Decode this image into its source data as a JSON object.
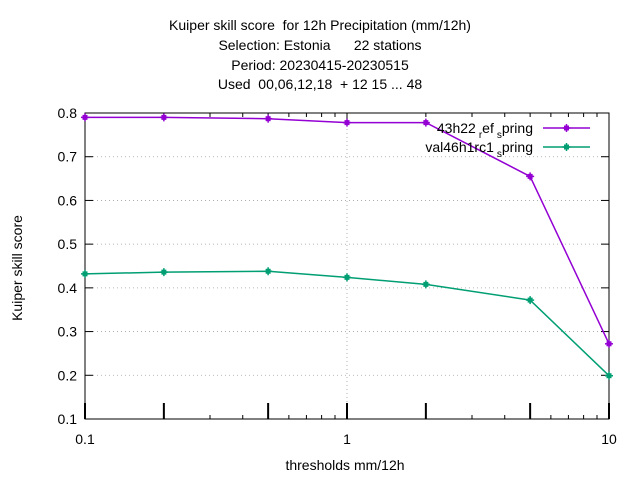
{
  "title_lines": [
    "Kuiper skill score  for 12h Precipitation (mm/12h)",
    "Selection: Estonia      22 stations",
    "Period: 20230415-20230515",
    "Used  00,06,12,18  + 12 15 ... 48"
  ],
  "chart_data": {
    "type": "line",
    "xlabel": "thresholds mm/12h",
    "ylabel": "Kuiper skill score",
    "xscale": "log",
    "xlim": [
      0.1,
      10
    ],
    "ylim": [
      0.1,
      0.8
    ],
    "x_ticks": [
      0.1,
      1,
      10
    ],
    "x_tick_labels": [
      "0.1",
      "1",
      "10"
    ],
    "y_ticks": [
      0.1,
      0.2,
      0.3,
      0.4,
      0.5,
      0.6,
      0.7,
      0.8
    ],
    "y_tick_labels": [
      "0.1",
      "0.2",
      "0.3",
      "0.4",
      "0.5",
      "0.6",
      "0.7",
      "0.8"
    ],
    "grid": true,
    "legend_position": "top-right",
    "threshold_marks": [
      0.1,
      0.2,
      0.5,
      1,
      2,
      5,
      10
    ],
    "series": [
      {
        "name": "43h22_ref_spring",
        "legend_main": "43h22",
        "legend_sub1": "r",
        "legend_mid": "ef",
        "legend_sub2": "s",
        "legend_end": "pring",
        "color": "#9400d3",
        "x": [
          0.1,
          0.2,
          0.5,
          1,
          2,
          5,
          10
        ],
        "y": [
          0.79,
          0.79,
          0.787,
          0.778,
          0.778,
          0.655,
          0.272
        ]
      },
      {
        "name": "val46h1rc1_spring",
        "legend_main": "val46h1rc1",
        "legend_sub1": "s",
        "legend_end": "pring",
        "color": "#009e73",
        "x": [
          0.1,
          0.2,
          0.5,
          1,
          2,
          5,
          10
        ],
        "y": [
          0.432,
          0.436,
          0.438,
          0.424,
          0.408,
          0.372,
          0.199
        ]
      }
    ]
  }
}
